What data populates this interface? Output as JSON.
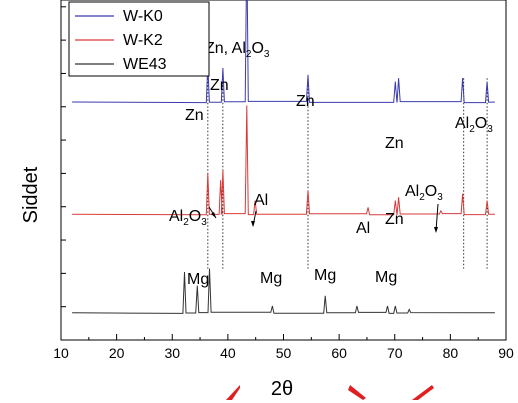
{
  "chart_data": {
    "type": "line",
    "xlabel": "2θ",
    "ylabel": "Siddet",
    "xlim": [
      10,
      90
    ],
    "x_ticks": [
      "10",
      "20",
      "30",
      "40",
      "50",
      "60",
      "70",
      "80",
      "90"
    ],
    "y_tick_labels_shown": false,
    "legend_position": "top-left",
    "series": [
      {
        "name": "W-K0",
        "color": "#3b3bb0",
        "baseline": 0.7,
        "peaks": [
          {
            "x": 36.4,
            "h": 0.11
          },
          {
            "x": 39.1,
            "h": 0.1
          },
          {
            "x": 43.4,
            "h": 0.46
          },
          {
            "x": 54.4,
            "h": 0.08
          },
          {
            "x": 70.1,
            "h": 0.06
          },
          {
            "x": 70.7,
            "h": 0.07
          },
          {
            "x": 82.2,
            "h": 0.07
          },
          {
            "x": 86.6,
            "h": 0.06
          }
        ]
      },
      {
        "name": "W-K2",
        "color": "#d93b3b",
        "baseline": 0.37,
        "peaks": [
          {
            "x": 36.4,
            "h": 0.12
          },
          {
            "x": 38.7,
            "h": 0.1
          },
          {
            "x": 39.1,
            "h": 0.13
          },
          {
            "x": 43.4,
            "h": 0.32
          },
          {
            "x": 44.9,
            "h": 0.04
          },
          {
            "x": 54.4,
            "h": 0.07
          },
          {
            "x": 65.2,
            "h": 0.02
          },
          {
            "x": 70.1,
            "h": 0.04
          },
          {
            "x": 70.7,
            "h": 0.05
          },
          {
            "x": 78.3,
            "h": 0.01
          },
          {
            "x": 82.2,
            "h": 0.06
          },
          {
            "x": 86.6,
            "h": 0.04
          }
        ]
      },
      {
        "name": "WE43",
        "color": "#333333",
        "baseline": 0.08,
        "peaks": [
          {
            "x": 32.2,
            "h": 0.12
          },
          {
            "x": 34.5,
            "h": 0.08
          },
          {
            "x": 36.7,
            "h": 0.13
          },
          {
            "x": 48.0,
            "h": 0.02
          },
          {
            "x": 57.5,
            "h": 0.05
          },
          {
            "x": 63.2,
            "h": 0.02
          },
          {
            "x": 68.7,
            "h": 0.02
          },
          {
            "x": 70.1,
            "h": 0.02
          },
          {
            "x": 72.6,
            "h": 0.01
          }
        ]
      }
    ],
    "reference_lines_x": [
      36.4,
      39.1,
      54.4,
      82.4,
      86.6
    ],
    "annotations": [
      {
        "id": "zn-1",
        "text": "Zn",
        "sub": []
      },
      {
        "id": "zn-2",
        "text": "Zn",
        "sub": []
      },
      {
        "id": "zn-al2o3",
        "text": "Zn, Al",
        "sub": [
          "2",
          "O",
          "3"
        ]
      },
      {
        "id": "zn-3",
        "text": "Zn",
        "sub": []
      },
      {
        "id": "zn-4",
        "text": "Zn",
        "sub": []
      },
      {
        "id": "al2o3-1",
        "text": "Al",
        "sub": [
          "2",
          "O",
          "3"
        ]
      },
      {
        "id": "al2o3-2",
        "text": "Al",
        "sub": [
          "2",
          "O",
          "3"
        ]
      },
      {
        "id": "al-1",
        "text": "Al",
        "sub": []
      },
      {
        "id": "al-2",
        "text": "Al",
        "sub": []
      },
      {
        "id": "zn-5",
        "text": "Zn",
        "sub": []
      },
      {
        "id": "al2o3-3",
        "text": "Al",
        "sub": [
          "2",
          "O",
          "3"
        ]
      },
      {
        "id": "mg-1",
        "text": "Mg",
        "sub": []
      },
      {
        "id": "mg-2",
        "text": "Mg",
        "sub": []
      },
      {
        "id": "mg-3",
        "text": "Mg",
        "sub": []
      },
      {
        "id": "mg-4",
        "text": "Mg",
        "sub": []
      }
    ]
  }
}
